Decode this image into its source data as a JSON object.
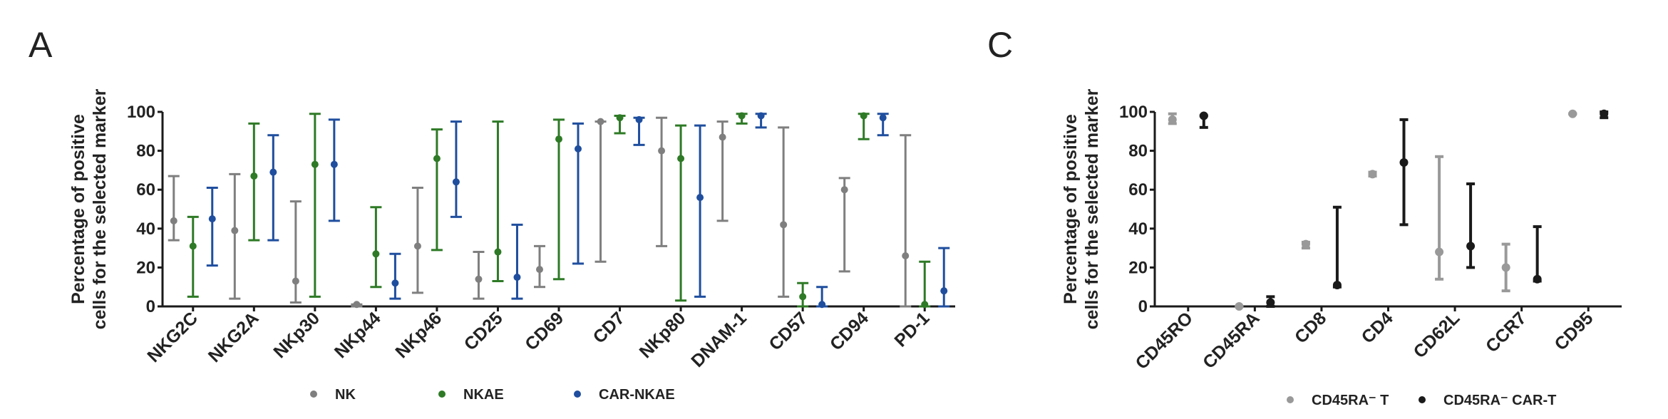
{
  "chart_data": [
    {
      "panel": "A",
      "type": "scatter",
      "ylabel": [
        "Percentage of  positive",
        "cells for the selected marker"
      ],
      "ylim": [
        0,
        100
      ],
      "yticks": [
        0,
        20,
        40,
        60,
        80,
        100
      ],
      "categories": [
        "NKG2C",
        "NKG2A",
        "NKp30",
        "NKp44",
        "NKp46",
        "CD25",
        "CD69",
        "CD7",
        "NKp80",
        "DNAM-1",
        "CD57",
        "CD94",
        "PD-1"
      ],
      "legend_position": "bottom",
      "series": [
        {
          "name": "NK",
          "color": "#7f7f7f",
          "values": [
            44,
            39,
            13,
            1,
            31,
            14,
            19,
            95,
            80,
            87,
            42,
            60,
            26
          ],
          "low": [
            34,
            4,
            2,
            0,
            7,
            4,
            10,
            23,
            31,
            44,
            5,
            18,
            0
          ],
          "high": [
            67,
            68,
            54,
            1,
            61,
            28,
            31,
            95,
            97,
            95,
            92,
            66,
            88
          ]
        },
        {
          "name": "NKAE",
          "color": "#2e7a26",
          "values": [
            31,
            67,
            73,
            27,
            76,
            28,
            86,
            97,
            76,
            98,
            5,
            98,
            1
          ],
          "low": [
            5,
            34,
            5,
            10,
            29,
            13,
            14,
            89,
            3,
            94,
            0,
            86,
            0
          ],
          "high": [
            46,
            94,
            99,
            51,
            91,
            95,
            96,
            98,
            93,
            99,
            12,
            99,
            23
          ]
        },
        {
          "name": "CAR-NKAE",
          "color": "#1f4e9e",
          "values": [
            45,
            69,
            73,
            12,
            64,
            15,
            81,
            96,
            56,
            98,
            1,
            97,
            8
          ],
          "low": [
            21,
            34,
            44,
            4,
            46,
            4,
            22,
            83,
            5,
            92,
            0,
            88,
            0
          ],
          "high": [
            61,
            88,
            96,
            27,
            95,
            42,
            94,
            97,
            93,
            99,
            10,
            99,
            30
          ]
        }
      ]
    },
    {
      "panel": "C",
      "type": "scatter",
      "ylabel": [
        "Percentage of  positive",
        "cells for the selected marker"
      ],
      "ylim": [
        0,
        100
      ],
      "yticks": [
        0,
        20,
        40,
        60,
        80,
        100
      ],
      "categories": [
        "CD45RO",
        "CD45RA",
        "CD8",
        "CD4",
        "CD62L",
        "CCR7",
        "CD95"
      ],
      "legend_position": "bottom",
      "series": [
        {
          "name": "CD45RA⁻ T",
          "color": "#999999",
          "values": [
            96,
            0,
            32,
            68,
            28,
            20,
            99
          ],
          "low": [
            94,
            0,
            30,
            67,
            14,
            8,
            99
          ],
          "high": [
            99,
            0,
            33,
            69,
            77,
            32,
            99
          ]
        },
        {
          "name": "CD45RA⁻ CAR-T",
          "color": "#1a1a1a",
          "values": [
            98,
            2,
            11,
            74,
            31,
            14,
            99
          ],
          "low": [
            92,
            0,
            10,
            42,
            20,
            13,
            97
          ],
          "high": [
            98,
            5,
            51,
            96,
            63,
            41,
            100
          ]
        }
      ]
    }
  ]
}
